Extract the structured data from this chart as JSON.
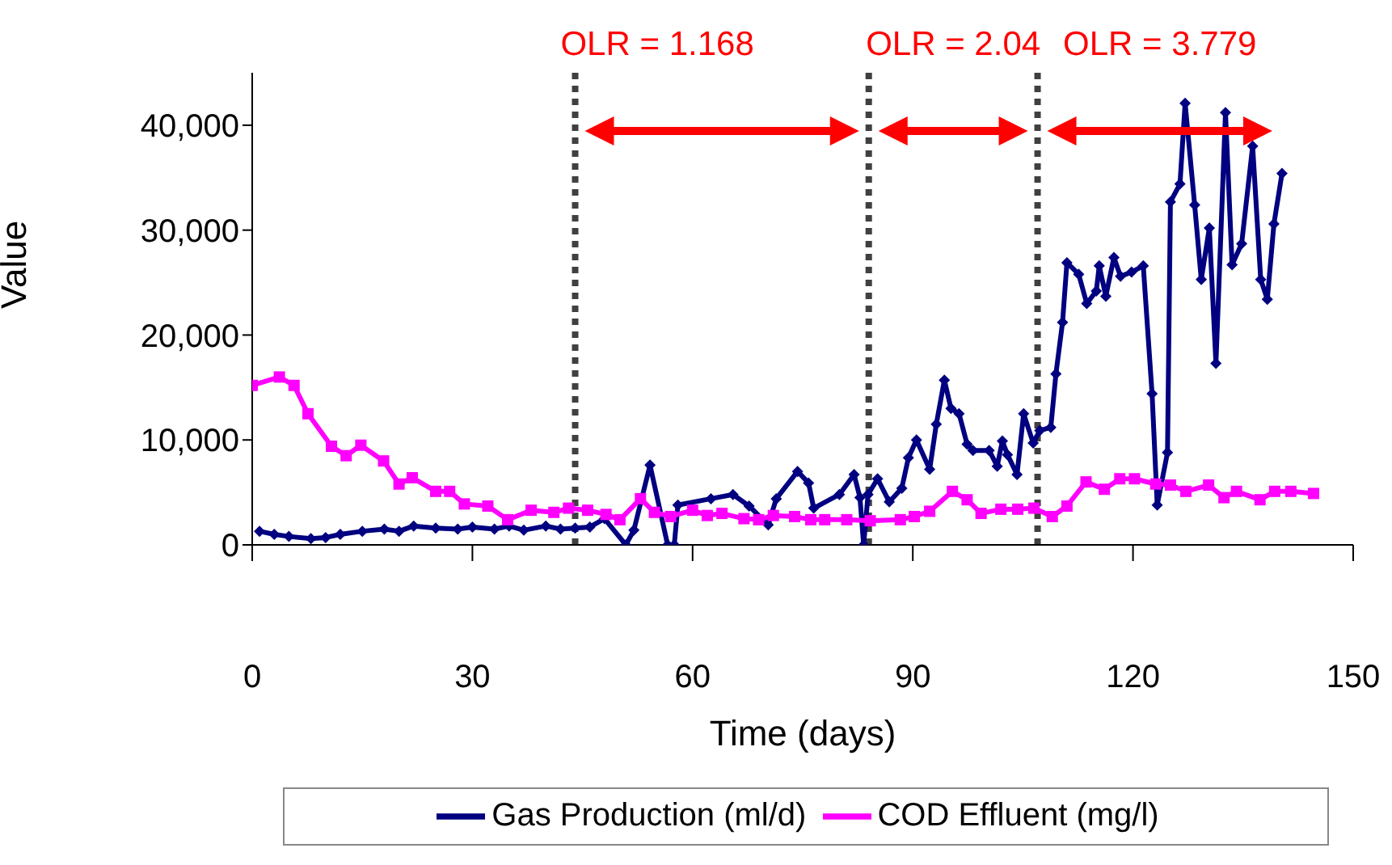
{
  "chart_data": {
    "type": "line",
    "xlabel": "Time (days)",
    "ylabel": "Value",
    "xlim": [
      0,
      150
    ],
    "xticks": [
      0,
      30,
      60,
      90,
      120,
      150
    ],
    "ylim": [
      0,
      45000
    ],
    "yticks": [
      0,
      {
        "value": 10000,
        "label": "10,000"
      },
      {
        "value": 20000,
        "label": "20,000"
      },
      {
        "value": 30000,
        "label": "30,000"
      },
      {
        "value": 40000,
        "label": "40,000"
      }
    ],
    "grid": false,
    "legend": "bottom",
    "series": [
      {
        "name": "Gas Production (ml/d)",
        "color": "#000080",
        "marker": "diamond",
        "x": [
          1,
          3,
          5,
          8,
          10,
          12,
          15,
          18,
          20,
          22,
          25,
          28,
          30,
          33,
          35,
          37,
          40,
          42,
          44,
          46,
          48,
          50.9,
          52,
          54.2,
          56.6,
          57.5,
          58,
          62.5,
          65.5,
          67.7,
          70.3,
          71.4,
          74.3,
          75.8,
          76.5,
          80,
          82,
          82.8,
          83.3,
          83.9,
          85.2,
          86.8,
          88.5,
          89.4,
          90.5,
          92.3,
          93.2,
          94.3,
          95.2,
          96.3,
          97.4,
          98.2,
          100.4,
          101.5,
          102.2,
          102.9,
          104.2,
          105.1,
          106.4,
          107.3,
          108.8,
          109.5,
          110.4,
          111,
          112.6,
          113.7,
          115,
          115.4,
          116.3,
          117.4,
          118.3,
          119.8,
          121.4,
          122.6,
          123.3,
          124.7,
          125.1,
          126.4,
          127.1,
          128.4,
          129.3,
          130.4,
          131.3,
          132.6,
          133.5,
          134.8,
          136.3,
          137.4,
          138.3,
          139.2,
          140.3
        ],
        "values": [
          1300,
          1000,
          800,
          600,
          700,
          1000,
          1300,
          1500,
          1300,
          1800,
          1600,
          1500,
          1700,
          1500,
          1800,
          1400,
          1800,
          1500,
          1600,
          1700,
          2500,
          0,
          1400,
          7600,
          0,
          0,
          3800,
          4400,
          4800,
          3700,
          1900,
          4400,
          7000,
          5900,
          3500,
          4800,
          6700,
          4500,
          0,
          4800,
          6300,
          4100,
          5400,
          8300,
          10000,
          7200,
          11500,
          15700,
          13000,
          12500,
          9600,
          9000,
          9000,
          7500,
          9900,
          8600,
          6700,
          12500,
          9700,
          10900,
          11200,
          16300,
          21200,
          26900,
          25800,
          23000,
          24200,
          26600,
          23700,
          27400,
          25600,
          26000,
          26600,
          14400,
          3800,
          8800,
          32700,
          34400,
          42100,
          32400,
          25300,
          30200,
          17300,
          41200,
          26700,
          28700,
          38000,
          25300,
          23400,
          30600,
          35400
        ]
      },
      {
        "name": "COD Effluent (mg/l)",
        "color": "#ff00ff",
        "marker": "square",
        "x": [
          0,
          3.7,
          5.7,
          7.6,
          10.8,
          12.8,
          14.8,
          17.9,
          20,
          21.8,
          25,
          26.9,
          28.9,
          32.1,
          34.8,
          38,
          41.1,
          43.1,
          45.7,
          48.2,
          50.1,
          52.9,
          54.8,
          57,
          60,
          62,
          64,
          67,
          69,
          71,
          73.9,
          76.1,
          78,
          81,
          84.2,
          88.3,
          90.2,
          92.3,
          95.4,
          97.4,
          99.3,
          102,
          104.3,
          106.5,
          109,
          111,
          113.6,
          116.1,
          118.2,
          120.2,
          123.1,
          125.1,
          127.2,
          130.3,
          132.4,
          134.1,
          137.3,
          139.3,
          141.5,
          144.6
        ],
        "values": [
          15200,
          16000,
          15200,
          12500,
          9400,
          8500,
          9500,
          8000,
          5800,
          6400,
          5100,
          5100,
          3900,
          3700,
          2400,
          3300,
          3100,
          3500,
          3300,
          2900,
          2400,
          4400,
          3100,
          2700,
          3300,
          2800,
          3000,
          2500,
          2400,
          2800,
          2700,
          2400,
          2400,
          2400,
          2300,
          2400,
          2700,
          3200,
          5100,
          4300,
          3000,
          3400,
          3400,
          3500,
          2700,
          3700,
          6000,
          5300,
          6300,
          6300,
          5800,
          5700,
          5100,
          5700,
          4500,
          5100,
          4300,
          5100,
          5100,
          4900
        ]
      }
    ],
    "ref_lines": [
      {
        "axis": "x",
        "value": 44,
        "color": "#404040",
        "line_style": "dotted"
      },
      {
        "axis": "x",
        "value": 84,
        "color": "#404040",
        "line_style": "dotted"
      },
      {
        "axis": "x",
        "value": 107,
        "color": "#404040",
        "line_style": "dotted"
      }
    ],
    "annotations": [
      "OLR = 1.168",
      "OLR = 2.04",
      "OLR = 3.779"
    ]
  }
}
